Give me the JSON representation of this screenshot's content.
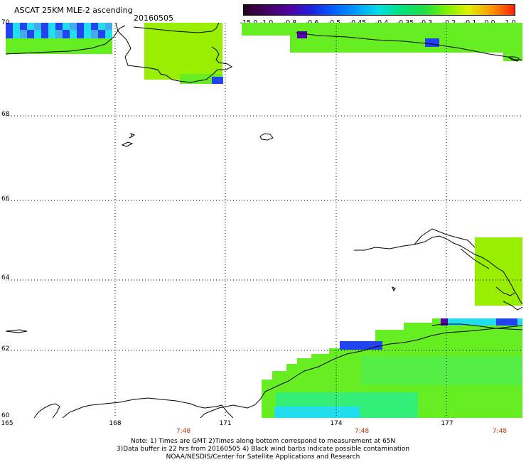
{
  "header": {
    "title": "ASCAT 25KM MLE-2 ascending",
    "date": "20160505"
  },
  "colorbar": {
    "labels": [
      "-15.0",
      "-1.0",
      "-0.8",
      "-0.6",
      "-0.5",
      "-0.45",
      "-0.4",
      "-0.35",
      "-0.3",
      "-0.2",
      "-0.1",
      "0.0",
      "1.0"
    ],
    "colors": [
      "#2a0020",
      "#400060",
      "#5000a0",
      "#2020e0",
      "#0060ff",
      "#00a0ff",
      "#00e0e0",
      "#00e080",
      "#20e040",
      "#80f000",
      "#e0f000",
      "#ff9000",
      "#ff2000"
    ]
  },
  "axes": {
    "lat_labels": [
      "70",
      "68",
      "66",
      "64",
      "62",
      "60"
    ],
    "lon_labels": [
      "165",
      "168",
      "171",
      "174",
      "177"
    ],
    "time_labels": [
      "7:48",
      "7:48",
      "7:48"
    ]
  },
  "footer": {
    "note1": "Note: 1) Times are GMT 2)Times along bottom correspond to measurement at 65N",
    "note2": "3)Data buffer is 22 hrs from 20160505 4) Black wind barbs indicate possible contamination",
    "note3": "NOAA/NESDIS/Center for Satellite Applications and Research"
  },
  "palette": {
    "green": "#66ee22",
    "lime": "#99ee00",
    "cyan": "#22ddee",
    "blue": "#2244ee",
    "purple": "#5500aa"
  }
}
